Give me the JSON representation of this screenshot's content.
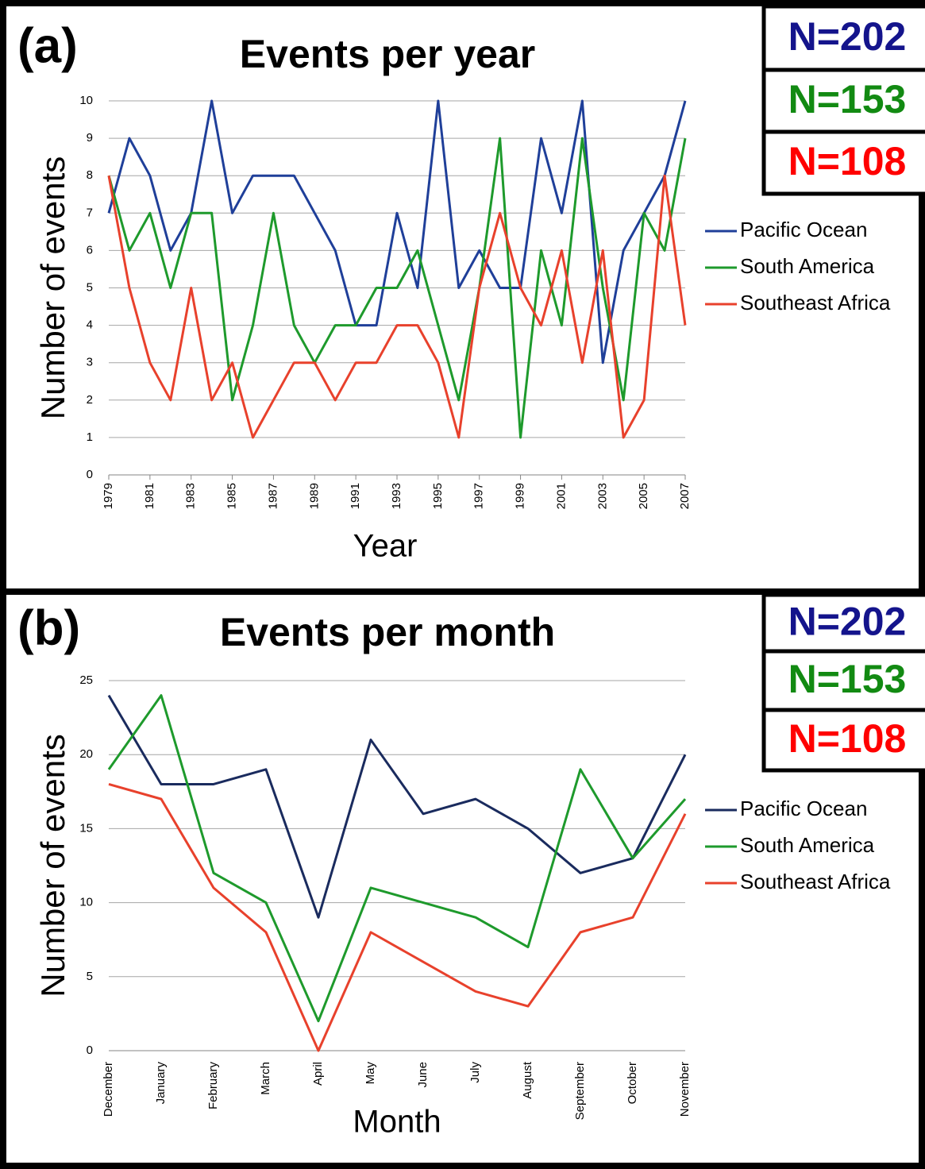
{
  "chart_data": [
    {
      "type": "line",
      "label": "(a)",
      "title": "Events per year",
      "x_label": "Year",
      "y_label": "Number of events",
      "x": [
        1979,
        1980,
        1981,
        1982,
        1983,
        1984,
        1985,
        1986,
        1987,
        1988,
        1989,
        1990,
        1991,
        1992,
        1993,
        1994,
        1995,
        1996,
        1997,
        1998,
        1999,
        2000,
        2001,
        2002,
        2003,
        2004,
        2005,
        2006,
        2007
      ],
      "xlim": [
        1979,
        2007
      ],
      "xticks": [
        1979,
        1981,
        1983,
        1985,
        1987,
        1989,
        1991,
        1993,
        1995,
        1997,
        1999,
        2001,
        2003,
        2005,
        2007
      ],
      "ylim": [
        0,
        10
      ],
      "yticks": [
        0,
        1,
        2,
        3,
        4,
        5,
        6,
        7,
        8,
        9,
        10
      ],
      "grid": true,
      "series": [
        {
          "name": "Pacific Ocean",
          "color": "#1f3f99",
          "values": [
            7,
            9,
            8,
            6,
            7,
            10,
            7,
            8,
            8,
            8,
            7,
            6,
            4,
            4,
            7,
            5,
            10,
            5,
            6,
            5,
            5,
            9,
            7,
            10,
            3,
            6,
            7,
            8,
            10
          ]
        },
        {
          "name": "South America",
          "color": "#1e9a2c",
          "values": [
            8,
            6,
            7,
            5,
            7,
            7,
            2,
            4,
            7,
            4,
            3,
            4,
            4,
            5,
            5,
            6,
            4,
            2,
            5,
            9,
            1,
            6,
            4,
            9,
            5,
            2,
            7,
            6,
            9
          ]
        },
        {
          "name": "Southeast Africa",
          "color": "#e8412c",
          "values": [
            8,
            5,
            3,
            2,
            5,
            2,
            3,
            1,
            2,
            3,
            3,
            2,
            3,
            3,
            4,
            4,
            3,
            1,
            5,
            7,
            5,
            4,
            6,
            3,
            6,
            1,
            2,
            8,
            4
          ]
        }
      ],
      "annotations": [
        {
          "text": "N=202",
          "color": "#14148c"
        },
        {
          "text": "N=153",
          "color": "#128a12"
        },
        {
          "text": "N=108",
          "color": "#ff0000"
        }
      ]
    },
    {
      "type": "line",
      "label": "(b)",
      "title": "Events per month",
      "x_label": "Month",
      "y_label": "Number of events",
      "categories": [
        "December",
        "January",
        "February",
        "March",
        "April",
        "May",
        "June",
        "July",
        "August",
        "September",
        "October",
        "November"
      ],
      "ylim": [
        0,
        25
      ],
      "yticks": [
        0,
        5,
        10,
        15,
        20,
        25
      ],
      "grid": true,
      "series": [
        {
          "name": "Pacific Ocean",
          "color": "#1a2b5e",
          "values": [
            24,
            18,
            18,
            19,
            9,
            21,
            16,
            17,
            15,
            12,
            13,
            20
          ]
        },
        {
          "name": "South America",
          "color": "#1e9a2c",
          "values": [
            19,
            24,
            12,
            10,
            2,
            11,
            10,
            9,
            7,
            19,
            13,
            17
          ]
        },
        {
          "name": "Southeast Africa",
          "color": "#e8412c",
          "values": [
            18,
            17,
            11,
            8,
            0,
            8,
            6,
            4,
            3,
            8,
            9,
            16
          ]
        }
      ],
      "annotations": [
        {
          "text": "N=202",
          "color": "#14148c"
        },
        {
          "text": "N=153",
          "color": "#128a12"
        },
        {
          "text": "N=108",
          "color": "#ff0000"
        }
      ]
    }
  ]
}
